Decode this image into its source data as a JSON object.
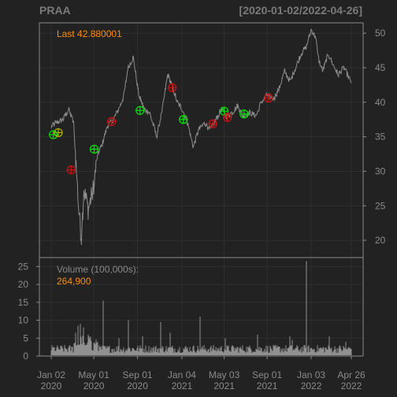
{
  "header": {
    "symbol": "PRAA",
    "date_range": "[2020-01-02/2022-04-26]"
  },
  "colors": {
    "background": "#222222",
    "frame": "#8a8a8a",
    "grid": "#2f2f2f",
    "price_line": "#8c8c8c",
    "volume_bar": "#909090",
    "accent_text": "#ff8c00",
    "label_text": "#8a8a8a",
    "buy_marker": "#00dd00",
    "sell_marker": "#cc1111",
    "neutral_marker": "#aaaa00"
  },
  "price_panel": {
    "last_label": "Last 42.880001"
  },
  "volume_panel": {
    "label": "Volume (100,000s):",
    "value": "264,900"
  },
  "chart_data": [
    {
      "type": "line",
      "name": "price",
      "x_ticks": [
        "Jan 02\n2020",
        "May 01\n2020",
        "Sep 01\n2020",
        "Jan 04\n2021",
        "May 03\n2021",
        "Sep 01\n2021",
        "Jan 03\n2022",
        "Apr 26\n2022"
      ],
      "x_tick_dates": [
        "2020-01-02",
        "2020-05-01",
        "2020-09-01",
        "2021-01-04",
        "2021-05-03",
        "2021-09-01",
        "2022-01-03",
        "2022-04-26"
      ],
      "y_ticks": [
        20,
        25,
        30,
        35,
        40,
        45,
        50
      ],
      "ylim": [
        17.5,
        51.5
      ],
      "grid": true,
      "anchors": [
        [
          "2020-01-02",
          36.5
        ],
        [
          "2020-01-15",
          37.0
        ],
        [
          "2020-02-05",
          37.5
        ],
        [
          "2020-02-20",
          39.0
        ],
        [
          "2020-03-05",
          37.0
        ],
        [
          "2020-03-12",
          31.0
        ],
        [
          "2020-03-20",
          24.0
        ],
        [
          "2020-03-27",
          20.5
        ],
        [
          "2020-04-03",
          27.5
        ],
        [
          "2020-04-15",
          24.5
        ],
        [
          "2020-04-28",
          27.0
        ],
        [
          "2020-05-12",
          32.5
        ],
        [
          "2020-05-25",
          34.0
        ],
        [
          "2020-06-08",
          36.5
        ],
        [
          "2020-06-25",
          37.5
        ],
        [
          "2020-07-10",
          39.0
        ],
        [
          "2020-07-25",
          41.0
        ],
        [
          "2020-08-05",
          45.0
        ],
        [
          "2020-08-20",
          46.5
        ],
        [
          "2020-09-05",
          41.0
        ],
        [
          "2020-09-20",
          39.0
        ],
        [
          "2020-10-05",
          38.5
        ],
        [
          "2020-10-25",
          35.0
        ],
        [
          "2020-11-10",
          39.0
        ],
        [
          "2020-11-25",
          44.0
        ],
        [
          "2020-12-10",
          42.0
        ],
        [
          "2020-12-22",
          40.0
        ],
        [
          "2021-01-05",
          39.0
        ],
        [
          "2021-01-20",
          37.0
        ],
        [
          "2021-02-05",
          33.5
        ],
        [
          "2021-02-20",
          36.0
        ],
        [
          "2021-03-10",
          37.0
        ],
        [
          "2021-03-25",
          36.0
        ],
        [
          "2021-04-10",
          37.5
        ],
        [
          "2021-04-25",
          39.0
        ],
        [
          "2021-05-10",
          38.0
        ],
        [
          "2021-05-25",
          38.5
        ],
        [
          "2021-06-10",
          39.5
        ],
        [
          "2021-06-25",
          38.0
        ],
        [
          "2021-07-15",
          38.5
        ],
        [
          "2021-08-01",
          38.0
        ],
        [
          "2021-08-15",
          40.0
        ],
        [
          "2021-09-01",
          41.0
        ],
        [
          "2021-09-20",
          40.5
        ],
        [
          "2021-10-05",
          42.0
        ],
        [
          "2021-10-20",
          44.5
        ],
        [
          "2021-11-05",
          43.0
        ],
        [
          "2021-11-20",
          45.0
        ],
        [
          "2021-12-05",
          47.0
        ],
        [
          "2021-12-20",
          48.0
        ],
        [
          "2022-01-03",
          50.5
        ],
        [
          "2022-01-15",
          49.5
        ],
        [
          "2022-01-25",
          46.0
        ],
        [
          "2022-02-05",
          44.5
        ],
        [
          "2022-02-20",
          47.0
        ],
        [
          "2022-03-05",
          45.5
        ],
        [
          "2022-03-20",
          44.0
        ],
        [
          "2022-04-05",
          45.0
        ],
        [
          "2022-04-15",
          44.0
        ],
        [
          "2022-04-26",
          42.88
        ]
      ],
      "markers": [
        {
          "date": "2020-01-08",
          "value": 35.3,
          "kind": "buy"
        },
        {
          "date": "2020-01-22",
          "value": 35.6,
          "kind": "neutral"
        },
        {
          "date": "2020-02-27",
          "value": 30.2,
          "kind": "sell"
        },
        {
          "date": "2020-05-02",
          "value": 33.2,
          "kind": "buy"
        },
        {
          "date": "2020-06-20",
          "value": 37.2,
          "kind": "sell"
        },
        {
          "date": "2020-09-08",
          "value": 38.8,
          "kind": "buy"
        },
        {
          "date": "2020-12-08",
          "value": 42.1,
          "kind": "sell"
        },
        {
          "date": "2021-01-08",
          "value": 37.5,
          "kind": "buy"
        },
        {
          "date": "2021-04-01",
          "value": 36.9,
          "kind": "sell"
        },
        {
          "date": "2021-05-03",
          "value": 38.7,
          "kind": "buy"
        },
        {
          "date": "2021-05-12",
          "value": 37.8,
          "kind": "sell"
        },
        {
          "date": "2021-06-28",
          "value": 38.3,
          "kind": "buy"
        },
        {
          "date": "2021-09-05",
          "value": 40.6,
          "kind": "sell"
        }
      ]
    },
    {
      "type": "bar",
      "name": "volume",
      "unit": "100,000s",
      "y_ticks": [
        0,
        5,
        10,
        15,
        20,
        25
      ],
      "ylim": [
        0,
        27.5
      ],
      "grid": true,
      "baseline_level": 2.5,
      "spikes": [
        [
          "2020-03-10",
          6.5
        ],
        [
          "2020-03-18",
          8.5
        ],
        [
          "2020-03-25",
          9.0
        ],
        [
          "2020-04-02",
          8.0
        ],
        [
          "2020-04-15",
          6.0
        ],
        [
          "2020-05-28",
          15.5
        ],
        [
          "2020-07-10",
          5.0
        ],
        [
          "2020-08-06",
          10.0
        ],
        [
          "2020-09-15",
          5.5
        ],
        [
          "2020-11-05",
          9.5
        ],
        [
          "2020-12-01",
          6.5
        ],
        [
          "2021-02-25",
          11.0
        ],
        [
          "2021-05-06",
          5.0
        ],
        [
          "2021-08-05",
          6.0
        ],
        [
          "2021-11-04",
          5.5
        ],
        [
          "2021-11-10",
          4.5
        ],
        [
          "2021-12-20",
          26.5
        ],
        [
          "2022-02-24",
          5.5
        ],
        [
          "2022-04-10",
          4.0
        ]
      ]
    }
  ]
}
